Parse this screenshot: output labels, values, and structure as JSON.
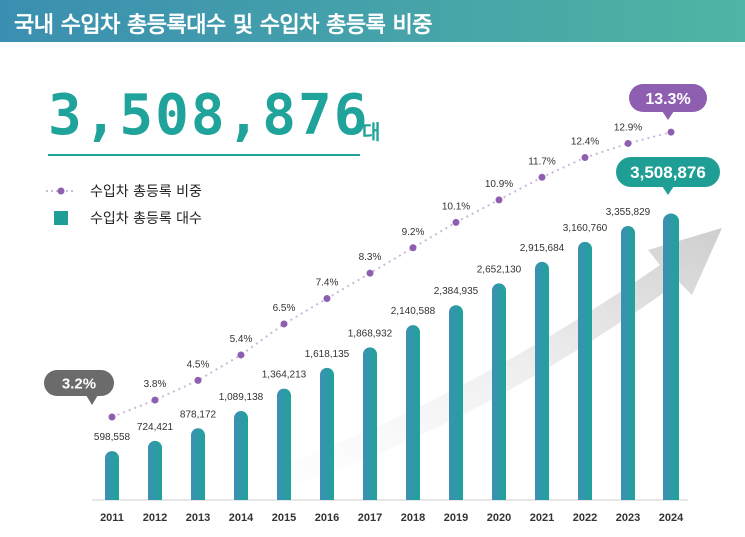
{
  "header": {
    "title": "국내 수입차 총등록대수 및 수입차 총등록 비중"
  },
  "total": {
    "value": "3,508,876",
    "unit": "대"
  },
  "legend": {
    "line_label": "수입차 총등록 비중",
    "bar_label": "수입차 총등록 대수"
  },
  "colors": {
    "bar_start": "#3d8fb4",
    "bar_end": "#1fa39a",
    "line_dot": "#8e5fb0",
    "callout_gray": "#6b6b6b",
    "callout_purple": "#8e5fb0",
    "callout_teal": "#1f9e95"
  },
  "chart_data": {
    "type": "bar",
    "title": "국내 수입차 총등록대수 및 수입차 총등록 비중",
    "categories": [
      "2011",
      "2012",
      "2013",
      "2014",
      "2015",
      "2016",
      "2017",
      "2018",
      "2019",
      "2020",
      "2021",
      "2022",
      "2023",
      "2024"
    ],
    "series": [
      {
        "name": "수입차 총등록 대수",
        "type": "bar",
        "values": [
          598558,
          724421,
          878172,
          1089138,
          1364213,
          1618135,
          1868932,
          2140588,
          2384935,
          2652130,
          2915684,
          3160760,
          3355829,
          3508876
        ],
        "labels": [
          "598,558",
          "724,421",
          "878,172",
          "1,089,138",
          "1,364,213",
          "1,618,135",
          "1,868,932",
          "2,140,588",
          "2,384,935",
          "2,652,130",
          "2,915,684",
          "3,160,760",
          "3,355,829",
          "3,508,876"
        ]
      },
      {
        "name": "수입차 총등록 비중",
        "type": "line",
        "values": [
          3.2,
          3.8,
          4.5,
          5.4,
          6.5,
          7.4,
          8.3,
          9.2,
          10.1,
          10.9,
          11.7,
          12.4,
          12.9,
          13.3
        ],
        "labels": [
          "3.2%",
          "3.8%",
          "4.5%",
          "5.4%",
          "6.5%",
          "7.4%",
          "8.3%",
          "9.2%",
          "10.1%",
          "10.9%",
          "11.7%",
          "12.4%",
          "12.9%",
          "13.3%"
        ]
      }
    ],
    "xlabel": "",
    "ylabel": "",
    "grid": false
  }
}
